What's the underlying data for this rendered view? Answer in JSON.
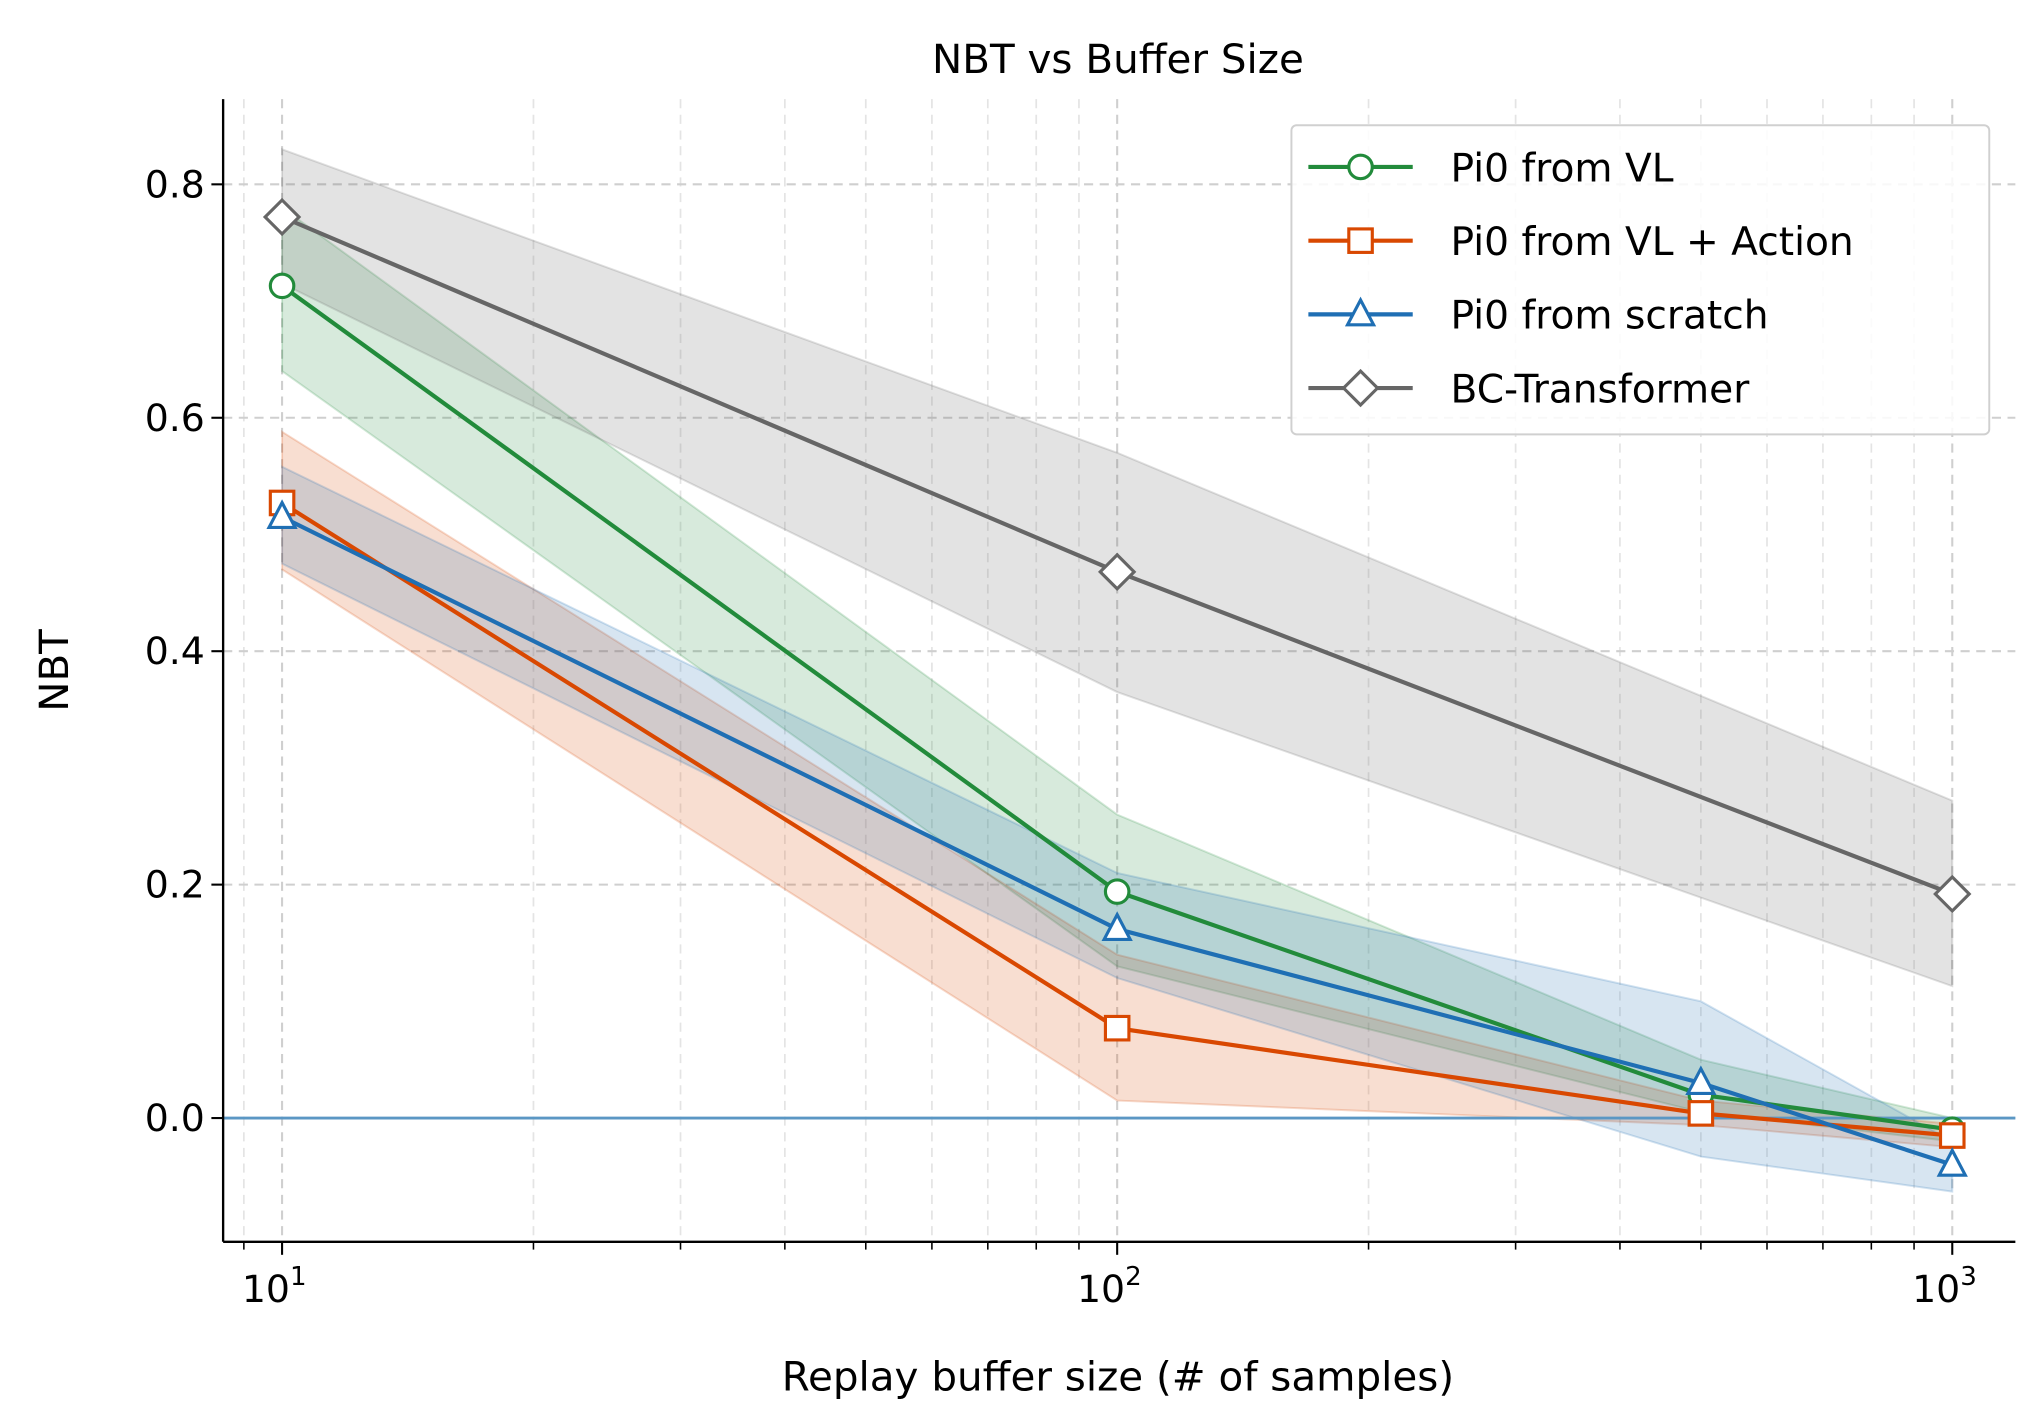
{
  "chart_data": {
    "type": "line",
    "title": "NBT vs Buffer Size",
    "xlabel": "Replay buffer size (# of samples)",
    "ylabel": "NBT",
    "xscale": "log",
    "xlim": [
      8.5,
      1190
    ],
    "ylim": [
      -0.106,
      0.873
    ],
    "xticks": [
      {
        "value": 10,
        "base": "10",
        "exp": "1"
      },
      {
        "value": 100,
        "base": "10",
        "exp": "2"
      },
      {
        "value": 1000,
        "base": "10",
        "exp": "3"
      }
    ],
    "yticks": [
      0.0,
      0.2,
      0.4,
      0.6,
      0.8
    ],
    "ytick_labels": [
      "0.0",
      "0.2",
      "0.4",
      "0.6",
      "0.8"
    ],
    "grid": true,
    "grid_style": "dashed, major and minor",
    "reference_line": {
      "y": 0.0,
      "color": "#5b97c4"
    },
    "legend": {
      "placement": "top-right"
    },
    "series": [
      {
        "name": "Pi0 from VL",
        "color": "#228b3b",
        "marker": "circle",
        "x": [
          10,
          100,
          500,
          1000
        ],
        "y": [
          0.713,
          0.194,
          0.02,
          -0.01
        ],
        "lower": [
          0.64,
          0.13,
          0.005,
          -0.02
        ],
        "upper": [
          0.78,
          0.26,
          0.05,
          0.0
        ]
      },
      {
        "name": "Pi0 from VL + Action",
        "color": "#d94801",
        "marker": "square",
        "x": [
          10,
          100,
          500,
          1000
        ],
        "y": [
          0.527,
          0.077,
          0.004,
          -0.015
        ],
        "lower": [
          0.47,
          0.015,
          -0.006,
          -0.025
        ],
        "upper": [
          0.588,
          0.14,
          0.015,
          -0.005
        ]
      },
      {
        "name": "Pi0 from scratch",
        "color": "#1f6fb4",
        "marker": "triangle",
        "x": [
          10,
          100,
          500,
          1000
        ],
        "y": [
          0.515,
          0.162,
          0.03,
          -0.04
        ],
        "lower": [
          0.475,
          0.12,
          -0.033,
          -0.063
        ],
        "upper": [
          0.558,
          0.21,
          0.1,
          -0.02
        ]
      },
      {
        "name": "BC-Transformer",
        "color": "#666666",
        "marker": "diamond",
        "x": [
          10,
          100,
          1000
        ],
        "y": [
          0.772,
          0.468,
          0.192
        ],
        "lower": [
          0.715,
          0.365,
          0.113
        ],
        "upper": [
          0.83,
          0.57,
          0.272
        ]
      }
    ]
  }
}
